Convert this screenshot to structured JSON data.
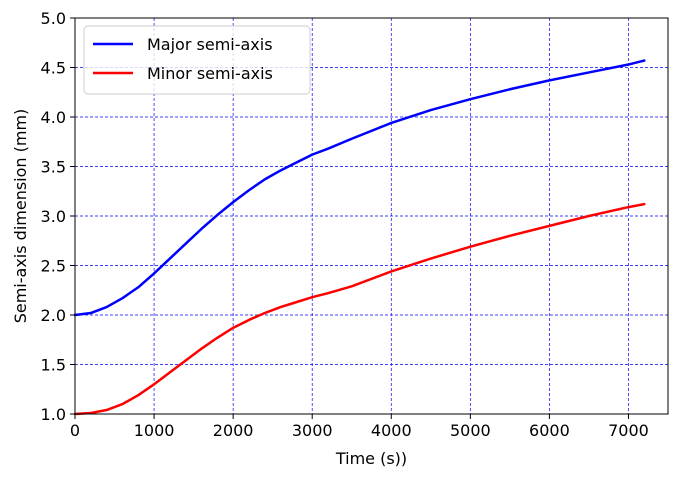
{
  "chart_data": {
    "type": "line",
    "title": "",
    "xlabel": "Time (s))",
    "ylabel": "Semi-axis dimension (mm)",
    "xlim": [
      0,
      7500
    ],
    "ylim": [
      1.0,
      5.0
    ],
    "xticks": [
      0,
      1000,
      2000,
      3000,
      4000,
      5000,
      6000,
      7000
    ],
    "yticks": [
      1.0,
      1.5,
      2.0,
      2.5,
      3.0,
      3.5,
      4.0,
      4.5,
      5.0
    ],
    "xtick_labels": [
      "0",
      "1000",
      "2000",
      "3000",
      "4000",
      "5000",
      "6000",
      "7000"
    ],
    "ytick_labels": [
      "1.0",
      "1.5",
      "2.0",
      "2.5",
      "3.0",
      "3.5",
      "4.0",
      "4.5",
      "5.0"
    ],
    "grid": true,
    "grid_color": "#0000ff",
    "legend_position": "upper-left",
    "series": [
      {
        "name": "Major semi-axis",
        "color": "#0000ff",
        "x": [
          0,
          200,
          400,
          600,
          800,
          1000,
          1200,
          1400,
          1600,
          1800,
          2000,
          2200,
          2400,
          2600,
          2800,
          3000,
          3200,
          3500,
          4000,
          4500,
          5000,
          5500,
          6000,
          6500,
          7000,
          7200
        ],
        "y": [
          2.0,
          2.02,
          2.08,
          2.17,
          2.28,
          2.42,
          2.57,
          2.72,
          2.87,
          3.01,
          3.14,
          3.26,
          3.37,
          3.46,
          3.54,
          3.62,
          3.68,
          3.78,
          3.94,
          4.07,
          4.18,
          4.28,
          4.37,
          4.45,
          4.53,
          4.57
        ]
      },
      {
        "name": "Minor semi-axis",
        "color": "#ff0000",
        "x": [
          0,
          200,
          400,
          600,
          800,
          1000,
          1200,
          1400,
          1600,
          1800,
          2000,
          2200,
          2400,
          2600,
          2800,
          3000,
          3200,
          3500,
          4000,
          4500,
          5000,
          5500,
          6000,
          6500,
          7000,
          7200
        ],
        "y": [
          1.0,
          1.01,
          1.04,
          1.1,
          1.19,
          1.3,
          1.42,
          1.54,
          1.66,
          1.77,
          1.87,
          1.95,
          2.02,
          2.08,
          2.13,
          2.18,
          2.22,
          2.29,
          2.44,
          2.57,
          2.69,
          2.8,
          2.9,
          3.0,
          3.09,
          3.12
        ]
      }
    ]
  }
}
